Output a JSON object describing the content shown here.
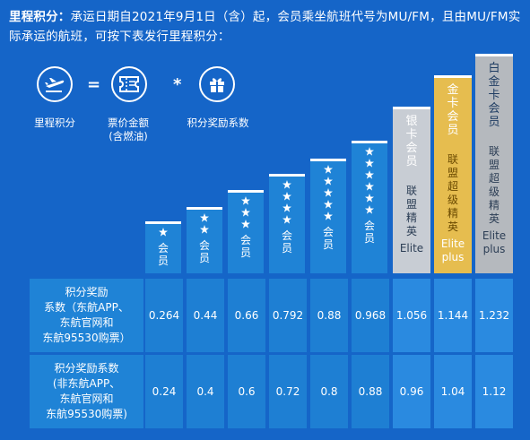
{
  "intro": {
    "lead": "里程积分：",
    "text": "承运日期自2021年9月1日（含）起，会员乘坐航班代号为MU/FM，且由MU/FM实际承运的航班，可按下表发行里程积分："
  },
  "formula": {
    "eq": "=",
    "mul": "*",
    "miles_label": "里程积分",
    "fare_label_1": "票价金额",
    "fare_label_2": "(含燃油)",
    "bonus_label": "积分奖励系数"
  },
  "tiers": [
    {
      "stars": 1,
      "label": "会员"
    },
    {
      "stars": 2,
      "label": "会员"
    },
    {
      "stars": 3,
      "label": "会员"
    },
    {
      "stars": 4,
      "label": "会员"
    },
    {
      "stars": 5,
      "label": "会员"
    },
    {
      "stars": 6,
      "label": "会员"
    }
  ],
  "elite_tiers": [
    {
      "name": "银卡会员",
      "sub": "联盟精英",
      "eng": "Elite",
      "color": "#c8cdd4",
      "name_bg": "#9aa3ad"
    },
    {
      "name": "金卡会员",
      "sub": "联盟超级精英",
      "eng": "Elite plus",
      "color": "#e6bd4f",
      "name_bg": "#d6a329"
    },
    {
      "name": "白金卡会员",
      "sub": "联盟超级精英",
      "eng": "Elite plus",
      "color": "#b5b9be",
      "name_bg": "#8f959b"
    }
  ],
  "rows": [
    {
      "label": "积分奖励系数（东航APP、东航官网和东航95530购票）",
      "label_lines": [
        "积分奖励",
        "系数（东航APP、",
        "东航官网和",
        "东航95530购票）"
      ],
      "values": [
        "0.264",
        "0.44",
        "0.66",
        "0.792",
        "0.88",
        "0.968",
        "1.056",
        "1.144",
        "1.232"
      ]
    },
    {
      "label": "积分奖励系数(非东航APP、东航官网和东航95530购票)",
      "label_lines": [
        "积分奖励系数",
        "(非东航APP、",
        "东航官网和",
        "东航95530购票)"
      ],
      "values": [
        "0.24",
        "0.4",
        "0.6",
        "0.72",
        "0.8",
        "0.88",
        "0.96",
        "1.04",
        "1.12"
      ]
    }
  ],
  "colors": {
    "background": "#1565c8",
    "tier_blue": "#1f83d6",
    "cell_blue": "#1e7fd3"
  }
}
